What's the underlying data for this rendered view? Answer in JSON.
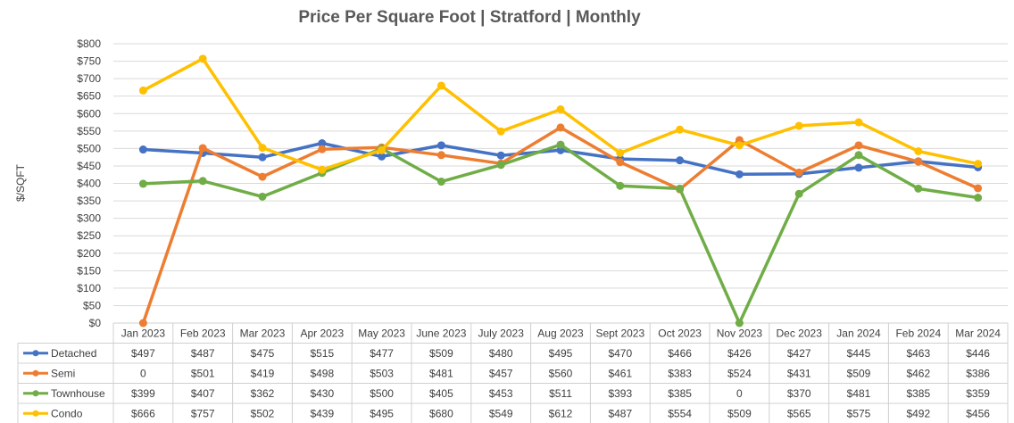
{
  "chart_data": {
    "type": "line",
    "title": "Price Per Square Foot | Stratford | Monthly",
    "ylabel": "$/SQFT",
    "ylim": [
      0,
      800
    ],
    "ytick_step": 50,
    "grid": true,
    "legend": "data-table-below",
    "categories": [
      "Jan 2023",
      "Feb 2023",
      "Mar 2023",
      "Apr 2023",
      "May 2023",
      "June 2023",
      "July 2023",
      "Aug 2023",
      "Sept 2023",
      "Oct 2023",
      "Nov 2023",
      "Dec 2023",
      "Jan 2024",
      "Feb 2024",
      "Mar 2024"
    ],
    "series": [
      {
        "name": "Detached",
        "color": "#4472C4",
        "values": [
          497,
          487,
          475,
          515,
          477,
          509,
          480,
          495,
          470,
          466,
          426,
          427,
          445,
          463,
          446
        ],
        "labels": [
          "$497",
          "$487",
          "$475",
          "$515",
          "$477",
          "$509",
          "$480",
          "$495",
          "$470",
          "$466",
          "$426",
          "$427",
          "$445",
          "$463",
          "$446"
        ]
      },
      {
        "name": "Semi",
        "color": "#ED7D31",
        "values": [
          0,
          501,
          419,
          498,
          503,
          481,
          457,
          560,
          461,
          383,
          524,
          431,
          509,
          462,
          386
        ],
        "labels": [
          "0",
          "$501",
          "$419",
          "$498",
          "$503",
          "$481",
          "$457",
          "$560",
          "$461",
          "$383",
          "$524",
          "$431",
          "$509",
          "$462",
          "$386"
        ]
      },
      {
        "name": "Townhouse",
        "color": "#70AD47",
        "values": [
          399,
          407,
          362,
          430,
          500,
          405,
          453,
          511,
          393,
          385,
          0,
          370,
          481,
          385,
          359
        ],
        "labels": [
          "$399",
          "$407",
          "$362",
          "$430",
          "$500",
          "$405",
          "$453",
          "$511",
          "$393",
          "$385",
          "0",
          "$370",
          "$481",
          "$385",
          "$359"
        ]
      },
      {
        "name": "Condo",
        "color": "#FFC000",
        "values": [
          666,
          757,
          502,
          439,
          495,
          680,
          549,
          612,
          487,
          554,
          509,
          565,
          575,
          492,
          456
        ],
        "labels": [
          "$666",
          "$757",
          "$502",
          "$439",
          "$495",
          "$680",
          "$549",
          "$612",
          "$487",
          "$554",
          "$509",
          "$565",
          "$575",
          "$492",
          "$456"
        ]
      }
    ]
  }
}
